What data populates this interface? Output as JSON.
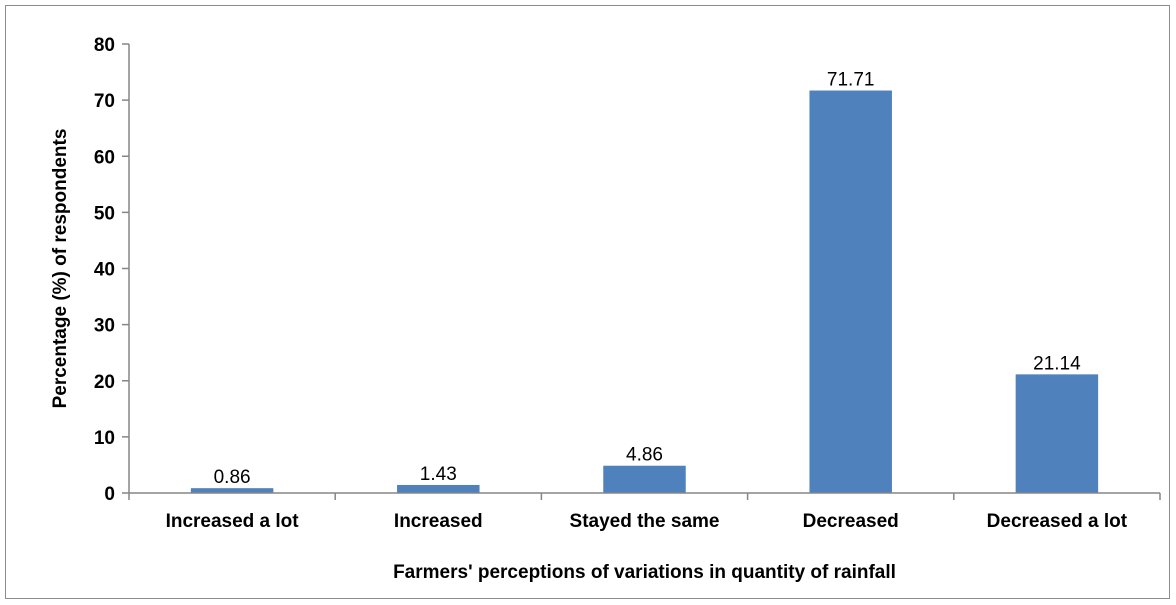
{
  "chart_data": {
    "type": "bar",
    "title": "",
    "xlabel": "Farmers' perceptions of variations in quantity of rainfall",
    "ylabel": "Percentage (%) of respondents",
    "categories": [
      "Increased a lot",
      "Increased",
      "Stayed the same",
      "Decreased",
      "Decreased a lot"
    ],
    "values": [
      0.86,
      1.43,
      4.86,
      71.71,
      21.14
    ],
    "data_labels": [
      "0.86",
      "1.43",
      "4.86",
      "71.71",
      "21.14"
    ],
    "ylim": [
      0,
      80
    ],
    "yticks": [
      0,
      10,
      20,
      30,
      40,
      50,
      60,
      70,
      80
    ],
    "grid": false,
    "legend": "none",
    "bar_color": "#4F81BD"
  }
}
